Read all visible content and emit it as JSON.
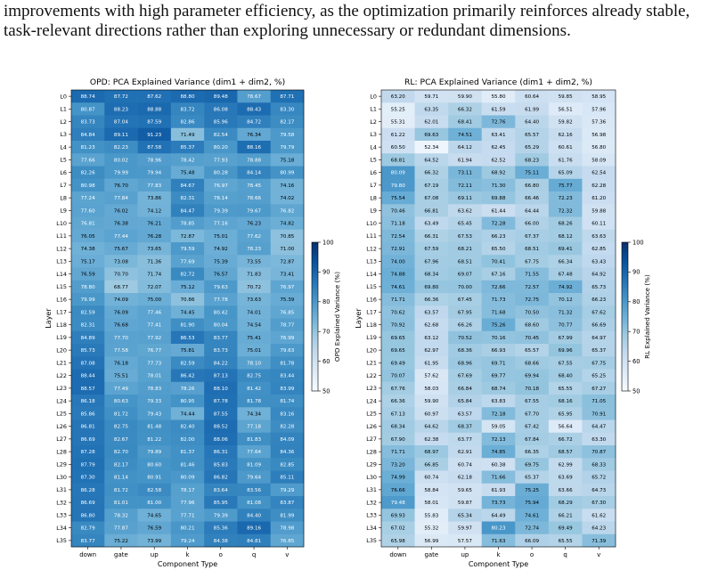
{
  "caption": {
    "line1": "improvements with high parameter efficiency, as the optimization primarily reinforces already stable,",
    "line2": "task-relevant directions rather than exploring unnecessary or redundant dimensions."
  },
  "chart_data": [
    {
      "type": "heatmap",
      "title": "OPD: PCA Explained Variance (dim1 + dim2, %)",
      "xlabel": "Component Type",
      "ylabel": "Layer",
      "colorbar_label": "OPD Explained Variance (%)",
      "colorbar_ticks": [
        "50",
        "60",
        "70",
        "80",
        "90",
        "100"
      ],
      "vmin": 50,
      "vmax": 100,
      "colormap": [
        "#f7fbff",
        "#deebf7",
        "#c6dbef",
        "#9ecae1",
        "#6baed6",
        "#4292c6",
        "#2171b5",
        "#08519c",
        "#08306b"
      ],
      "x": [
        "down",
        "gate",
        "up",
        "k",
        "o",
        "q",
        "v"
      ],
      "y": [
        "L0",
        "L1",
        "L2",
        "L3",
        "L4",
        "L5",
        "L6",
        "L7",
        "L8",
        "L9",
        "L10",
        "L11",
        "L12",
        "L13",
        "L14",
        "L15",
        "L16",
        "L17",
        "L18",
        "L19",
        "L20",
        "L21",
        "L22",
        "L23",
        "L24",
        "L25",
        "L26",
        "L27",
        "L28",
        "L29",
        "L30",
        "L31",
        "L32",
        "L33",
        "L34",
        "L35"
      ],
      "values": [
        [
          "88.74",
          "87.72",
          "87.62",
          "88.80",
          "89.48",
          "78.67",
          "87.71"
        ],
        [
          "80.87",
          "88.23",
          "88.88",
          "83.72",
          "86.08",
          "88.43",
          "83.30"
        ],
        [
          "83.73",
          "87.04",
          "87.59",
          "82.86",
          "85.96",
          "84.72",
          "82.17"
        ],
        [
          "84.84",
          "89.11",
          "91.23",
          "71.49",
          "82.54",
          "76.34",
          "79.58"
        ],
        [
          "81.23",
          "82.23",
          "87.58",
          "85.37",
          "80.20",
          "88.16",
          "79.79"
        ],
        [
          "77.66",
          "80.02",
          "78.96",
          "78.42",
          "77.93",
          "78.88",
          "75.18"
        ],
        [
          "82.26",
          "79.99",
          "79.94",
          "75.48",
          "80.28",
          "84.14",
          "80.99"
        ],
        [
          "80.98",
          "76.70",
          "77.83",
          "84.67",
          "76.97",
          "78.45",
          "74.16"
        ],
        [
          "77.24",
          "77.84",
          "73.86",
          "82.31",
          "78.14",
          "78.66",
          "74.02"
        ],
        [
          "77.60",
          "76.02",
          "74.12",
          "84.47",
          "79.39",
          "79.67",
          "76.82"
        ],
        [
          "76.81",
          "76.38",
          "76.21",
          "78.85",
          "77.16",
          "76.23",
          "74.82"
        ],
        [
          "76.05",
          "77.44",
          "76.28",
          "72.87",
          "75.01",
          "77.62",
          "70.85"
        ],
        [
          "74.38",
          "75.67",
          "73.65",
          "79.59",
          "74.92",
          "78.23",
          "71.00"
        ],
        [
          "75.17",
          "73.08",
          "71.36",
          "77.69",
          "75.39",
          "73.55",
          "72.87"
        ],
        [
          "76.59",
          "70.70",
          "71.74",
          "82.72",
          "76.57",
          "71.83",
          "73.41"
        ],
        [
          "78.80",
          "68.77",
          "72.07",
          "75.12",
          "79.63",
          "70.72",
          "76.97"
        ],
        [
          "79.99",
          "74.09",
          "75.00",
          "70.86",
          "77.78",
          "73.63",
          "75.39"
        ],
        [
          "82.59",
          "76.09",
          "77.46",
          "74.45",
          "80.42",
          "74.01",
          "76.85"
        ],
        [
          "82.31",
          "76.68",
          "77.41",
          "81.90",
          "80.04",
          "74.54",
          "78.77"
        ],
        [
          "84.89",
          "77.70",
          "77.92",
          "86.53",
          "83.77",
          "75.41",
          "76.99"
        ],
        [
          "85.73",
          "77.58",
          "76.77",
          "75.81",
          "83.73",
          "75.01",
          "79.63"
        ],
        [
          "87.08",
          "76.18",
          "77.73",
          "82.59",
          "84.22",
          "78.10",
          "81.78"
        ],
        [
          "88.44",
          "75.51",
          "78.01",
          "86.42",
          "87.13",
          "82.75",
          "83.44"
        ],
        [
          "88.57",
          "77.49",
          "78.83",
          "78.26",
          "88.10",
          "81.42",
          "83.99"
        ],
        [
          "86.18",
          "80.63",
          "79.33",
          "80.95",
          "87.78",
          "81.78",
          "81.74"
        ],
        [
          "85.86",
          "81.72",
          "79.43",
          "74.44",
          "87.55",
          "74.34",
          "83.16"
        ],
        [
          "86.81",
          "82.75",
          "81.48",
          "82.40",
          "88.52",
          "77.18",
          "82.28"
        ],
        [
          "86.69",
          "82.67",
          "81.22",
          "82.00",
          "88.06",
          "81.83",
          "84.09"
        ],
        [
          "87.28",
          "82.70",
          "79.89",
          "81.37",
          "86.31",
          "77.64",
          "84.36"
        ],
        [
          "87.79",
          "82.17",
          "80.60",
          "81.46",
          "85.83",
          "81.09",
          "82.85"
        ],
        [
          "87.30",
          "81.14",
          "80.91",
          "80.09",
          "86.82",
          "79.64",
          "85.11"
        ],
        [
          "86.28",
          "81.72",
          "82.58",
          "78.17",
          "83.64",
          "83.56",
          "79.29"
        ],
        [
          "86.69",
          "81.01",
          "81.00",
          "77.96",
          "85.95",
          "81.08",
          "83.87"
        ],
        [
          "86.80",
          "78.32",
          "74.65",
          "77.71",
          "79.39",
          "84.40",
          "81.99"
        ],
        [
          "82.79",
          "77.87",
          "76.59",
          "80.21",
          "85.36",
          "89.16",
          "78.98"
        ],
        [
          "83.77",
          "75.22",
          "73.99",
          "79.24",
          "84.38",
          "84.81",
          "76.85"
        ]
      ]
    },
    {
      "type": "heatmap",
      "title": "RL: PCA Explained Variance (dim1 + dim2, %)",
      "xlabel": "Component Type",
      "ylabel": "Layer",
      "colorbar_label": "RL Explained Variance (%)",
      "colorbar_ticks": [
        "50",
        "60",
        "70",
        "80",
        "90",
        "100"
      ],
      "vmin": 50,
      "vmax": 100,
      "colormap": [
        "#f7fbff",
        "#deebf7",
        "#c6dbef",
        "#9ecae1",
        "#6baed6",
        "#4292c6",
        "#2171b5",
        "#08519c",
        "#08306b"
      ],
      "x": [
        "down",
        "gate",
        "up",
        "k",
        "o",
        "q",
        "v"
      ],
      "y": [
        "L0",
        "L1",
        "L2",
        "L3",
        "L4",
        "L5",
        "L6",
        "L7",
        "L8",
        "L9",
        "L10",
        "L11",
        "L12",
        "L13",
        "L14",
        "L15",
        "L16",
        "L17",
        "L18",
        "L19",
        "L20",
        "L21",
        "L22",
        "L23",
        "L24",
        "L25",
        "L26",
        "L27",
        "L28",
        "L29",
        "L30",
        "L31",
        "L32",
        "L33",
        "L34",
        "L35"
      ],
      "values": [
        [
          "63.20",
          "59.71",
          "59.90",
          "55.80",
          "60.64",
          "59.85",
          "58.95"
        ],
        [
          "55.25",
          "63.35",
          "66.32",
          "61.59",
          "61.99",
          "56.51",
          "57.96"
        ],
        [
          "55.31",
          "62.01",
          "68.41",
          "72.76",
          "64.40",
          "59.82",
          "57.36"
        ],
        [
          "61.22",
          "69.63",
          "74.51",
          "63.41",
          "65.57",
          "62.16",
          "56.98"
        ],
        [
          "60.50",
          "52.34",
          "64.12",
          "62.45",
          "65.29",
          "60.61",
          "56.80"
        ],
        [
          "68.81",
          "64.52",
          "61.94",
          "62.52",
          "68.23",
          "61.76",
          "58.09"
        ],
        [
          "80.09",
          "66.32",
          "73.11",
          "68.92",
          "75.11",
          "65.09",
          "62.54"
        ],
        [
          "79.80",
          "67.19",
          "72.11",
          "71.30",
          "66.80",
          "75.77",
          "62.28"
        ],
        [
          "75.54",
          "67.08",
          "69.11",
          "69.88",
          "66.46",
          "72.23",
          "61.20"
        ],
        [
          "70.46",
          "66.81",
          "63.62",
          "61.44",
          "64.44",
          "72.32",
          "59.88"
        ],
        [
          "71.18",
          "63.49",
          "65.45",
          "72.28",
          "66.00",
          "68.26",
          "60.11"
        ],
        [
          "72.54",
          "66.31",
          "67.53",
          "66.23",
          "67.37",
          "68.12",
          "63.63"
        ],
        [
          "72.91",
          "67.59",
          "68.21",
          "65.50",
          "68.51",
          "69.41",
          "62.85"
        ],
        [
          "74.00",
          "67.96",
          "68.51",
          "70.41",
          "67.75",
          "66.34",
          "63.43"
        ],
        [
          "74.88",
          "68.34",
          "69.07",
          "67.16",
          "71.55",
          "67.48",
          "64.92"
        ],
        [
          "74.61",
          "69.80",
          "70.00",
          "72.66",
          "72.57",
          "74.92",
          "65.73"
        ],
        [
          "71.71",
          "66.36",
          "67.45",
          "71.73",
          "72.75",
          "70.12",
          "66.23"
        ],
        [
          "70.62",
          "63.57",
          "67.95",
          "71.68",
          "70.50",
          "71.32",
          "67.62"
        ],
        [
          "70.92",
          "62.68",
          "66.26",
          "75.26",
          "68.60",
          "70.77",
          "66.69"
        ],
        [
          "69.65",
          "63.12",
          "70.52",
          "70.16",
          "70.45",
          "67.99",
          "64.97"
        ],
        [
          "69.65",
          "62.97",
          "68.36",
          "66.93",
          "65.57",
          "69.96",
          "65.37"
        ],
        [
          "69.49",
          "61.95",
          "68.96",
          "69.71",
          "68.66",
          "67.55",
          "67.75"
        ],
        [
          "70.07",
          "57.62",
          "67.69",
          "69.77",
          "69.94",
          "68.40",
          "65.25"
        ],
        [
          "67.76",
          "58.03",
          "66.84",
          "68.74",
          "70.18",
          "65.55",
          "67.27"
        ],
        [
          "66.36",
          "59.90",
          "65.84",
          "63.83",
          "67.55",
          "68.16",
          "71.05"
        ],
        [
          "67.13",
          "60.97",
          "63.57",
          "72.18",
          "67.70",
          "65.95",
          "70.91"
        ],
        [
          "68.34",
          "64.62",
          "68.37",
          "59.05",
          "67.42",
          "56.64",
          "64.47"
        ],
        [
          "67.90",
          "62.38",
          "63.77",
          "72.13",
          "67.84",
          "66.72",
          "63.30"
        ],
        [
          "71.71",
          "68.97",
          "62.91",
          "74.85",
          "66.35",
          "68.57",
          "70.87"
        ],
        [
          "73.20",
          "66.85",
          "60.74",
          "60.38",
          "69.75",
          "62.99",
          "68.33"
        ],
        [
          "74.99",
          "60.74",
          "62.18",
          "71.66",
          "65.37",
          "63.69",
          "65.72"
        ],
        [
          "76.66",
          "58.84",
          "59.65",
          "61.93",
          "75.25",
          "63.66",
          "64.73"
        ],
        [
          "79.48",
          "58.01",
          "59.87",
          "73.73",
          "75.94",
          "68.29",
          "67.30"
        ],
        [
          "69.93",
          "55.83",
          "65.34",
          "64.49",
          "74.61",
          "66.21",
          "61.62"
        ],
        [
          "67.02",
          "55.32",
          "59.97",
          "80.23",
          "72.74",
          "69.49",
          "64.23"
        ],
        [
          "65.98",
          "56.99",
          "57.57",
          "71.63",
          "66.09",
          "65.55",
          "71.39"
        ]
      ]
    }
  ]
}
